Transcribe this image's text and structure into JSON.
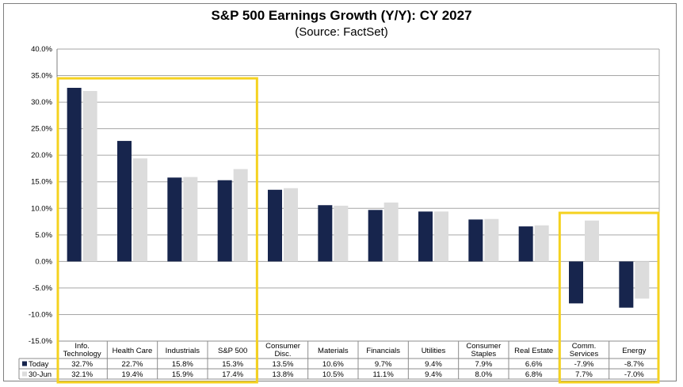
{
  "chart_data": {
    "type": "bar",
    "title": "S&P 500 Earnings Growth (Y/Y): CY 2027",
    "subtitle": "(Source: FactSet)",
    "categories": [
      "Info.\nTechnology",
      "Health Care",
      "Industrials",
      "S&P 500",
      "Consumer\nDisc.",
      "Materials",
      "Financials",
      "Utilities",
      "Consumer\nStaples",
      "Real Estate",
      "Comm.\nServices",
      "Energy"
    ],
    "series": [
      {
        "name": "Today",
        "color": "#17254d",
        "values": [
          32.7,
          22.7,
          15.8,
          15.3,
          13.5,
          10.6,
          9.7,
          9.4,
          7.9,
          6.6,
          -7.9,
          -8.7
        ]
      },
      {
        "name": "30-Jun",
        "color": "#dcdcdc",
        "values": [
          32.1,
          19.4,
          15.9,
          17.4,
          13.8,
          10.5,
          11.1,
          9.4,
          8.0,
          6.8,
          7.7,
          -7.0
        ]
      }
    ],
    "series_labels": [
      [
        "32.7%",
        "22.7%",
        "15.8%",
        "15.3%",
        "13.5%",
        "10.6%",
        "9.7%",
        "9.4%",
        "7.9%",
        "6.6%",
        "-7.9%",
        "-8.7%"
      ],
      [
        "32.1%",
        "19.4%",
        "15.9%",
        "17.4%",
        "13.8%",
        "10.5%",
        "11.1%",
        "9.4%",
        "8.0%",
        "6.8%",
        "7.7%",
        "-7.0%"
      ]
    ],
    "ylim": [
      -15,
      40
    ],
    "yticks": [
      "40.0%",
      "35.0%",
      "30.0%",
      "25.0%",
      "20.0%",
      "15.0%",
      "10.0%",
      "5.0%",
      "0.0%",
      "-5.0%",
      "-10.0%",
      "-15.0%"
    ],
    "ytick_values": [
      40,
      35,
      30,
      25,
      20,
      15,
      10,
      5,
      0,
      -5,
      -10,
      -15
    ],
    "grid": true,
    "legend": "data-table",
    "highlight_color": "#f5d21f"
  }
}
